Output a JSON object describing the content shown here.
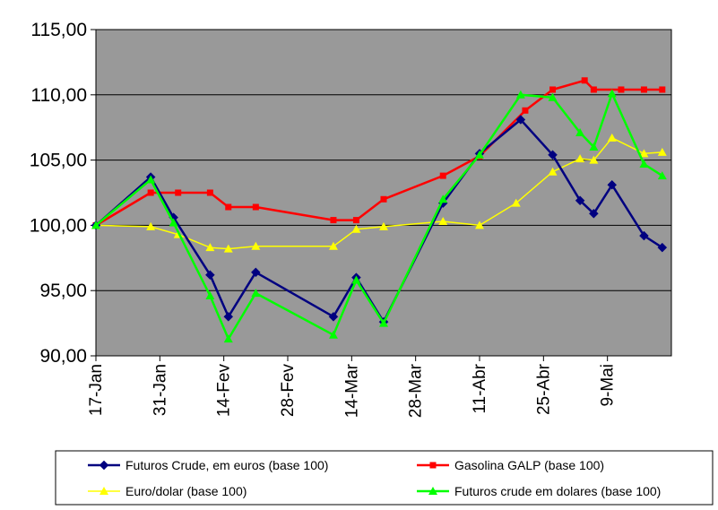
{
  "chart_data": {
    "type": "line",
    "title": "",
    "xlabel": "",
    "ylabel": "",
    "ylim": [
      90,
      115
    ],
    "y_ticks": [
      "90,00",
      "95,00",
      "100,00",
      "105,00",
      "110,00",
      "115,00"
    ],
    "y_tick_values": [
      90,
      95,
      100,
      105,
      110,
      115
    ],
    "x_ticks": [
      "17-Jan",
      "31-Jan",
      "14-Fev",
      "28-Fev",
      "14-Mar",
      "28-Mar",
      "11-Abr",
      "25-Abr",
      "9-Mai"
    ],
    "x_tick_days": [
      0,
      14,
      28,
      42,
      56,
      70,
      84,
      98,
      112
    ],
    "x_range_days": [
      0,
      126
    ],
    "plot_background": "#999999",
    "grid": "horizontal",
    "legend_position": "bottom",
    "series": [
      {
        "name": "Futuros Crude, em euros (base 100)",
        "color": "#000080",
        "marker": "diamond",
        "x_days": [
          0,
          12,
          17,
          25,
          29,
          35,
          52,
          57,
          63,
          76,
          84,
          93,
          100,
          106,
          109,
          113,
          120,
          124
        ],
        "values": [
          100.0,
          103.7,
          100.6,
          96.2,
          93.0,
          96.4,
          93.0,
          96.0,
          92.6,
          101.7,
          105.5,
          108.1,
          105.4,
          101.9,
          100.9,
          103.1,
          99.2,
          98.3
        ]
      },
      {
        "name": "Gasolina GALP (base 100)",
        "color": "#ff0000",
        "marker": "square",
        "x_days": [
          0,
          12,
          18,
          25,
          29,
          35,
          52,
          57,
          63,
          76,
          84,
          94,
          100,
          107,
          109,
          115,
          120,
          124
        ],
        "values": [
          100.0,
          102.5,
          102.5,
          102.5,
          101.4,
          101.4,
          100.4,
          100.4,
          102.0,
          103.8,
          105.3,
          108.8,
          110.4,
          111.1,
          110.4,
          110.4,
          110.4,
          110.4
        ]
      },
      {
        "name": "Euro/dolar (base 100)",
        "color": "#ffff00",
        "marker": "triangle",
        "x_days": [
          0,
          12,
          18,
          25,
          29,
          35,
          52,
          57,
          63,
          76,
          84,
          92,
          100,
          106,
          109,
          113,
          120,
          124
        ],
        "values": [
          100.0,
          99.9,
          99.3,
          98.3,
          98.2,
          98.4,
          98.4,
          99.7,
          99.9,
          100.3,
          100.0,
          101.7,
          104.1,
          105.1,
          105.0,
          106.7,
          105.5,
          105.6
        ]
      },
      {
        "name": "Futuros crude em dolares (base 100)",
        "color": "#00ff00",
        "marker": "triangle",
        "x_days": [
          0,
          12,
          17,
          25,
          29,
          35,
          52,
          57,
          63,
          76,
          84,
          93,
          100,
          106,
          109,
          113,
          120,
          124
        ],
        "values": [
          100.0,
          103.5,
          100.2,
          94.6,
          91.3,
          94.8,
          91.6,
          95.8,
          92.5,
          102.0,
          105.4,
          110.0,
          109.8,
          107.1,
          106.0,
          110.1,
          104.7,
          103.8
        ]
      }
    ]
  }
}
